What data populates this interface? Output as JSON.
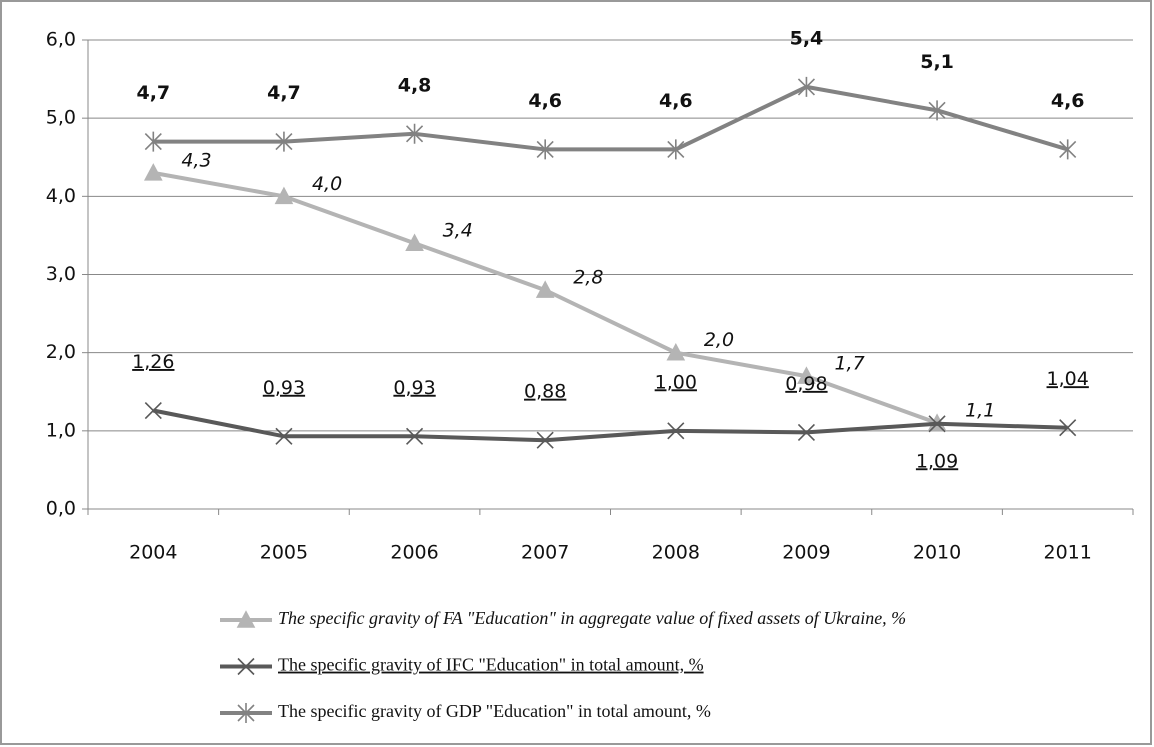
{
  "chart_data": {
    "type": "line",
    "categories": [
      "2004",
      "2005",
      "2006",
      "2007",
      "2008",
      "2009",
      "2010",
      "2011"
    ],
    "series": [
      {
        "name": "The specific gravity of FA \"Education\" in aggregate value of fixed assets of Ukraine, %",
        "color": "#b4b4b4",
        "marker": "triangle",
        "values": [
          4.3,
          4.0,
          3.4,
          2.8,
          2.0,
          1.7,
          1.1,
          null
        ],
        "value_labels": [
          "4,3",
          "4,0",
          "3,4",
          "2,8",
          "2,0",
          "1,7",
          "1,1",
          null
        ]
      },
      {
        "name": "The specific gravity of IFC \"Education\" in total amount, %",
        "color": "#595959",
        "marker": "x",
        "values": [
          1.26,
          0.93,
          0.93,
          0.88,
          1.0,
          0.98,
          1.09,
          1.04
        ],
        "value_labels": [
          "1,26",
          "0,93",
          "0,93",
          "0,88",
          "1,00",
          "0,98",
          "1,09",
          "1,04"
        ]
      },
      {
        "name": "The specific gravity of GDP \"Education\" in total amount, %",
        "color": "#828282",
        "marker": "asterisk",
        "values": [
          4.7,
          4.7,
          4.8,
          4.6,
          4.6,
          5.4,
          5.1,
          4.6
        ],
        "value_labels": [
          "4,7",
          "4,7",
          "4,8",
          "4,6",
          "4,6",
          "5,4",
          "5,1",
          "4,6"
        ]
      }
    ],
    "ylim": [
      0,
      6
    ],
    "yticks": [
      {
        "value": 0,
        "label": "0,0"
      },
      {
        "value": 1,
        "label": "1,0"
      },
      {
        "value": 2,
        "label": "2,0"
      },
      {
        "value": 3,
        "label": "3,0"
      },
      {
        "value": 4,
        "label": "4,0"
      },
      {
        "value": 5,
        "label": "5,0"
      },
      {
        "value": 6,
        "label": "6,0"
      }
    ],
    "grid": true,
    "legend": "bottom"
  }
}
